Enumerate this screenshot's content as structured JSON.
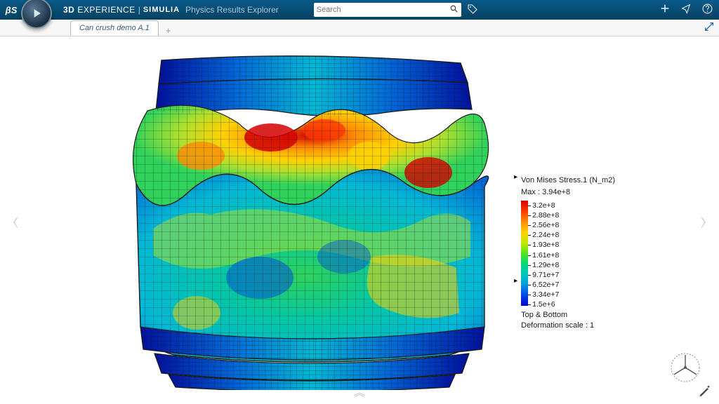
{
  "header": {
    "brand_bold": "3D",
    "brand_rest": "EXPERIENCE",
    "product": "SIMULIA",
    "subtitle": "Physics Results Explorer",
    "search_placeholder": "Search"
  },
  "tab": {
    "active": "Can crush demo A.1"
  },
  "legend": {
    "title": "Von Mises Stress.1 (N_m2)",
    "max": "Max : 3.94e+8",
    "ticks": [
      "3.2e+8",
      "2.88e+8",
      "2.56e+8",
      "2.24e+8",
      "1.93e+8",
      "1.61e+8",
      "1.29e+8",
      "9.71e+7",
      "6.52e+7",
      "3.34e+7",
      "1.5e+6"
    ],
    "colors": [
      "#d40000",
      "#ff3a00",
      "#ff8c00",
      "#ffd100",
      "#c8e800",
      "#57e41a",
      "#00d978",
      "#00c7c0",
      "#009add",
      "#0044e8",
      "#0008c8"
    ],
    "footer1": "Top & Bottom",
    "footer2": "Deformation scale : 1"
  },
  "fea_palette": {
    "red": "#d40000",
    "orange": "#ff8c00",
    "yellow": "#ffd100",
    "yg": "#a8e030",
    "green": "#2fd25a",
    "teal": "#00c7a8",
    "cyan": "#00b8d6",
    "blue": "#0050d8",
    "dkblue": "#0010a0",
    "mesh": "#1a1a1a"
  }
}
